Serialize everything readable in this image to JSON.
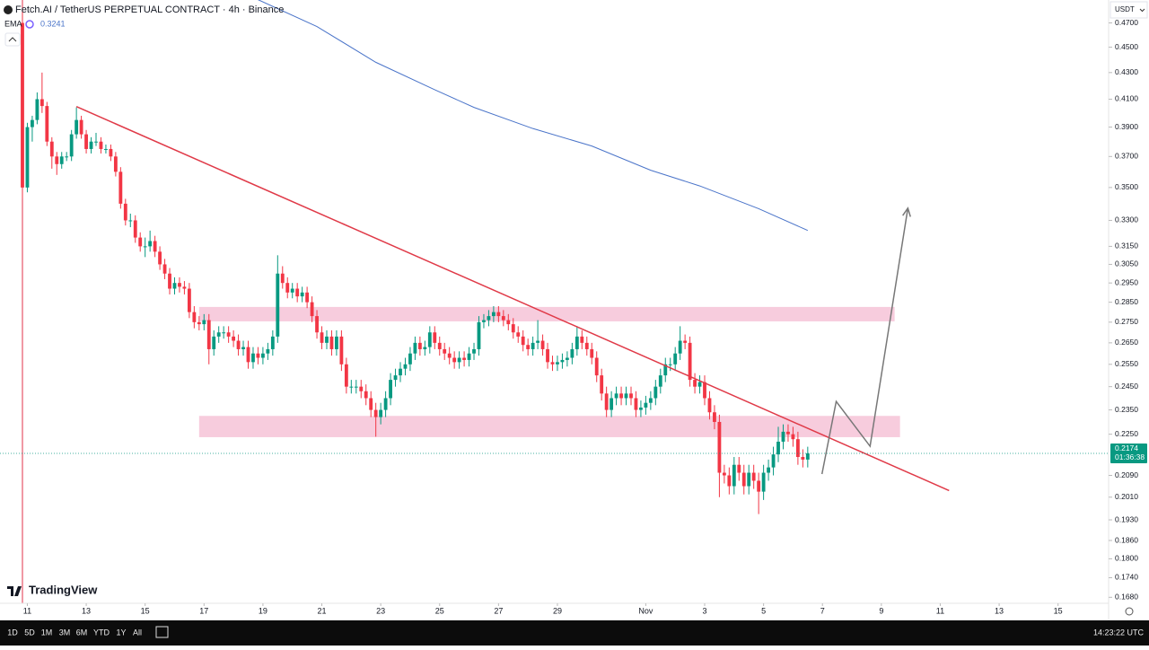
{
  "chart_data": {
    "type": "candlestick",
    "title": "Fetch.AI / TetherUS PERPETUAL CONTRACT · 4h · Binance",
    "currency": "USDT",
    "log_scale": true,
    "up_color": "#089981",
    "down_color": "#f23645",
    "ylim": [
      0.1662,
      0.4897
    ],
    "yticks": [
      {
        "value": 0.47,
        "label": "0.4700"
      },
      {
        "value": 0.45,
        "label": "0.4500"
      },
      {
        "value": 0.43,
        "label": "0.4300"
      },
      {
        "value": 0.41,
        "label": "0.4100"
      },
      {
        "value": 0.39,
        "label": "0.3900"
      },
      {
        "value": 0.37,
        "label": "0.3700"
      },
      {
        "value": 0.35,
        "label": "0.3500"
      },
      {
        "value": 0.33,
        "label": "0.3300"
      },
      {
        "value": 0.315,
        "label": "0.3150"
      },
      {
        "value": 0.305,
        "label": "0.3050"
      },
      {
        "value": 0.295,
        "label": "0.2950"
      },
      {
        "value": 0.285,
        "label": "0.2850"
      },
      {
        "value": 0.275,
        "label": "0.2750"
      },
      {
        "value": 0.265,
        "label": "0.2650"
      },
      {
        "value": 0.255,
        "label": "0.2550"
      },
      {
        "value": 0.245,
        "label": "0.2450"
      },
      {
        "value": 0.235,
        "label": "0.2350"
      },
      {
        "value": 0.225,
        "label": "0.2250"
      },
      {
        "value": 0.209,
        "label": "0.2090"
      },
      {
        "value": 0.201,
        "label": "0.2010"
      },
      {
        "value": 0.193,
        "label": "0.1930"
      },
      {
        "value": 0.186,
        "label": "0.1860"
      },
      {
        "value": 0.18,
        "label": "0.1800"
      },
      {
        "value": 0.174,
        "label": "0.1740"
      },
      {
        "value": 0.168,
        "label": "0.1680"
      }
    ],
    "xlim": [
      -4.57,
      221.3
    ],
    "xticks": [
      {
        "value": 1,
        "label": "11"
      },
      {
        "value": 13,
        "label": "13"
      },
      {
        "value": 25,
        "label": "15"
      },
      {
        "value": 37,
        "label": "17"
      },
      {
        "value": 49,
        "label": "19"
      },
      {
        "value": 61,
        "label": "21"
      },
      {
        "value": 73,
        "label": "23"
      },
      {
        "value": 85,
        "label": "25"
      },
      {
        "value": 97,
        "label": "27"
      },
      {
        "value": 109,
        "label": "29"
      },
      {
        "value": 127,
        "label": "Nov"
      },
      {
        "value": 139,
        "label": "3"
      },
      {
        "value": 151,
        "label": "5"
      },
      {
        "value": 163,
        "label": "7"
      },
      {
        "value": 175,
        "label": "9"
      },
      {
        "value": 187,
        "label": "11"
      },
      {
        "value": 199,
        "label": "13"
      },
      {
        "value": 211,
        "label": "15"
      }
    ],
    "open": [
      0.47,
      0.35,
      0.39,
      0.395,
      0.41,
      0.405,
      0.38,
      0.37,
      0.365,
      0.37,
      0.37,
      0.385,
      0.395,
      0.385,
      0.375,
      0.38,
      0.38,
      0.375,
      0.375,
      0.37,
      0.36,
      0.34,
      0.33,
      0.33,
      0.32,
      0.315,
      0.315,
      0.318,
      0.312,
      0.305,
      0.3,
      0.292,
      0.295,
      0.293,
      0.292,
      0.28,
      0.275,
      0.274,
      0.276,
      0.262,
      0.268,
      0.27,
      0.27,
      0.268,
      0.266,
      0.262,
      0.263,
      0.256,
      0.26,
      0.258,
      0.26,
      0.262,
      0.268,
      0.3,
      0.295,
      0.29,
      0.292,
      0.288,
      0.29,
      0.285,
      0.278,
      0.27,
      0.265,
      0.268,
      0.262,
      0.268,
      0.255,
      0.245,
      0.245,
      0.245,
      0.243,
      0.24,
      0.235,
      0.232,
      0.235,
      0.24,
      0.248,
      0.25,
      0.253,
      0.255,
      0.26,
      0.265,
      0.262,
      0.263,
      0.27,
      0.265,
      0.262,
      0.26,
      0.258,
      0.256,
      0.258,
      0.257,
      0.26,
      0.262,
      0.275,
      0.276,
      0.278,
      0.28,
      0.278,
      0.276,
      0.274,
      0.27,
      0.268,
      0.264,
      0.262,
      0.265,
      0.266,
      0.262,
      0.256,
      0.255,
      0.256,
      0.257,
      0.258,
      0.262,
      0.268,
      0.265,
      0.262,
      0.258,
      0.25,
      0.242,
      0.235,
      0.24,
      0.242,
      0.24,
      0.242,
      0.24,
      0.235,
      0.236,
      0.238,
      0.24,
      0.245,
      0.25,
      0.255,
      0.255,
      0.26,
      0.266,
      0.265,
      0.248,
      0.245,
      0.247,
      0.24,
      0.234,
      0.23,
      0.21,
      0.209,
      0.205,
      0.213,
      0.21,
      0.205,
      0.21,
      0.207,
      0.203,
      0.21,
      0.212,
      0.217,
      0.222,
      0.226,
      0.225,
      0.223,
      0.216,
      0.215
    ],
    "high": [
      0.482,
      0.393,
      0.398,
      0.415,
      0.43,
      0.408,
      0.383,
      0.373,
      0.373,
      0.373,
      0.388,
      0.404,
      0.398,
      0.388,
      0.383,
      0.386,
      0.383,
      0.378,
      0.378,
      0.373,
      0.363,
      0.343,
      0.334,
      0.333,
      0.323,
      0.32,
      0.324,
      0.321,
      0.315,
      0.308,
      0.303,
      0.298,
      0.298,
      0.296,
      0.295,
      0.283,
      0.278,
      0.279,
      0.279,
      0.271,
      0.273,
      0.273,
      0.273,
      0.271,
      0.269,
      0.266,
      0.266,
      0.263,
      0.263,
      0.263,
      0.265,
      0.271,
      0.31,
      0.304,
      0.298,
      0.295,
      0.295,
      0.293,
      0.293,
      0.288,
      0.281,
      0.273,
      0.271,
      0.271,
      0.271,
      0.271,
      0.258,
      0.248,
      0.248,
      0.248,
      0.246,
      0.243,
      0.238,
      0.238,
      0.243,
      0.251,
      0.253,
      0.256,
      0.258,
      0.263,
      0.268,
      0.268,
      0.266,
      0.273,
      0.273,
      0.268,
      0.265,
      0.263,
      0.261,
      0.261,
      0.261,
      0.263,
      0.265,
      0.278,
      0.279,
      0.281,
      0.283,
      0.283,
      0.281,
      0.279,
      0.277,
      0.273,
      0.271,
      0.267,
      0.268,
      0.276,
      0.269,
      0.265,
      0.259,
      0.259,
      0.26,
      0.261,
      0.265,
      0.273,
      0.271,
      0.268,
      0.265,
      0.261,
      0.253,
      0.245,
      0.243,
      0.245,
      0.245,
      0.245,
      0.245,
      0.243,
      0.239,
      0.241,
      0.243,
      0.248,
      0.253,
      0.258,
      0.258,
      0.263,
      0.273,
      0.269,
      0.268,
      0.251,
      0.25,
      0.25,
      0.243,
      0.237,
      0.233,
      0.213,
      0.212,
      0.216,
      0.216,
      0.213,
      0.213,
      0.213,
      0.21,
      0.213,
      0.215,
      0.22,
      0.228,
      0.229,
      0.229,
      0.228,
      0.226,
      0.219,
      0.22
    ],
    "low": [
      0.343,
      0.347,
      0.38,
      0.392,
      0.4,
      0.377,
      0.362,
      0.358,
      0.362,
      0.367,
      0.367,
      0.382,
      0.382,
      0.372,
      0.372,
      0.377,
      0.372,
      0.372,
      0.367,
      0.357,
      0.337,
      0.327,
      0.326,
      0.317,
      0.312,
      0.309,
      0.312,
      0.309,
      0.302,
      0.297,
      0.289,
      0.289,
      0.29,
      0.289,
      0.277,
      0.272,
      0.271,
      0.271,
      0.255,
      0.259,
      0.265,
      0.267,
      0.265,
      0.263,
      0.259,
      0.259,
      0.253,
      0.253,
      0.255,
      0.255,
      0.257,
      0.259,
      0.265,
      0.292,
      0.287,
      0.287,
      0.285,
      0.285,
      0.282,
      0.275,
      0.267,
      0.262,
      0.262,
      0.259,
      0.259,
      0.252,
      0.242,
      0.242,
      0.242,
      0.24,
      0.237,
      0.232,
      0.224,
      0.229,
      0.232,
      0.237,
      0.245,
      0.247,
      0.25,
      0.252,
      0.257,
      0.259,
      0.259,
      0.26,
      0.262,
      0.259,
      0.257,
      0.255,
      0.253,
      0.253,
      0.254,
      0.254,
      0.257,
      0.259,
      0.272,
      0.273,
      0.275,
      0.275,
      0.273,
      0.271,
      0.267,
      0.265,
      0.261,
      0.259,
      0.259,
      0.262,
      0.259,
      0.253,
      0.252,
      0.252,
      0.253,
      0.254,
      0.255,
      0.259,
      0.262,
      0.259,
      0.255,
      0.247,
      0.239,
      0.232,
      0.232,
      0.237,
      0.237,
      0.237,
      0.237,
      0.232,
      0.232,
      0.233,
      0.235,
      0.237,
      0.242,
      0.247,
      0.252,
      0.252,
      0.257,
      0.262,
      0.245,
      0.242,
      0.242,
      0.237,
      0.231,
      0.227,
      0.201,
      0.206,
      0.202,
      0.202,
      0.207,
      0.202,
      0.202,
      0.204,
      0.195,
      0.2,
      0.207,
      0.209,
      0.214,
      0.219,
      0.222,
      0.22,
      0.213,
      0.212,
      0.212
    ],
    "close": [
      0.35,
      0.39,
      0.395,
      0.41,
      0.405,
      0.38,
      0.37,
      0.365,
      0.37,
      0.37,
      0.385,
      0.395,
      0.385,
      0.375,
      0.38,
      0.38,
      0.375,
      0.375,
      0.37,
      0.36,
      0.34,
      0.33,
      0.33,
      0.32,
      0.315,
      0.315,
      0.318,
      0.312,
      0.305,
      0.3,
      0.292,
      0.295,
      0.293,
      0.292,
      0.28,
      0.275,
      0.274,
      0.276,
      0.262,
      0.268,
      0.27,
      0.27,
      0.268,
      0.266,
      0.262,
      0.263,
      0.256,
      0.26,
      0.258,
      0.26,
      0.262,
      0.268,
      0.3,
      0.295,
      0.29,
      0.292,
      0.288,
      0.29,
      0.285,
      0.278,
      0.27,
      0.265,
      0.268,
      0.262,
      0.268,
      0.255,
      0.245,
      0.245,
      0.245,
      0.243,
      0.24,
      0.235,
      0.232,
      0.235,
      0.24,
      0.248,
      0.25,
      0.253,
      0.255,
      0.26,
      0.265,
      0.262,
      0.263,
      0.27,
      0.265,
      0.262,
      0.26,
      0.258,
      0.256,
      0.258,
      0.257,
      0.26,
      0.262,
      0.275,
      0.276,
      0.278,
      0.28,
      0.278,
      0.276,
      0.274,
      0.27,
      0.268,
      0.264,
      0.262,
      0.265,
      0.266,
      0.262,
      0.256,
      0.255,
      0.256,
      0.257,
      0.258,
      0.262,
      0.268,
      0.265,
      0.262,
      0.258,
      0.25,
      0.242,
      0.235,
      0.24,
      0.242,
      0.24,
      0.242,
      0.24,
      0.235,
      0.236,
      0.238,
      0.24,
      0.245,
      0.25,
      0.255,
      0.255,
      0.26,
      0.266,
      0.265,
      0.248,
      0.245,
      0.247,
      0.24,
      0.234,
      0.23,
      0.21,
      0.209,
      0.205,
      0.213,
      0.21,
      0.205,
      0.21,
      0.207,
      0.203,
      0.21,
      0.212,
      0.217,
      0.222,
      0.226,
      0.225,
      0.223,
      0.216,
      0.215,
      0.2174
    ],
    "countdown": "01:36:38",
    "ema": {
      "name": "EMA",
      "color": "#4a74c9",
      "x": [
        48,
        60,
        72,
        84,
        92,
        104,
        116,
        128,
        138,
        150,
        160
      ],
      "values": [
        0.49,
        0.467,
        0.438,
        0.417,
        0.404,
        0.389,
        0.377,
        0.361,
        0.351,
        0.337,
        0.3241
      ]
    },
    "drawings": {
      "trendline": {
        "color": "#e03a48",
        "x": [
          11,
          188.8
        ],
        "values": [
          0.4046,
          0.2034
        ]
      },
      "zones": [
        {
          "color": "#f6c3d7",
          "x": [
            36,
            177.7
          ],
          "values": [
            0.2754,
            0.2826
          ]
        },
        {
          "color": "#f6c3d7",
          "x": [
            36,
            178.8
          ],
          "values": [
            0.2238,
            0.2325
          ]
        }
      ],
      "projection": {
        "color": "#777777",
        "x": [
          162.9,
          165.8,
          172.7,
          180.4
        ],
        "values": [
          0.2095,
          0.2386,
          0.2202,
          0.3373
        ]
      }
    }
  },
  "ui": {
    "logo": "TradingView",
    "ranges": [
      "1D",
      "5D",
      "1M",
      "3M",
      "6M",
      "YTD",
      "1Y",
      "All"
    ],
    "clock": "14:23:22 UTC"
  }
}
